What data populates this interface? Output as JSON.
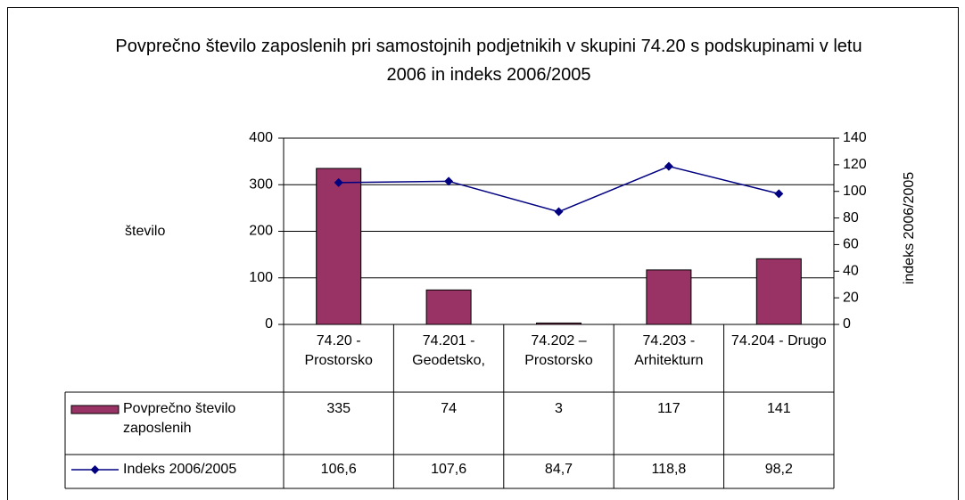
{
  "chart_data": {
    "type": "bar",
    "title": "Povprečno število zaposlenih pri samostojnih podjetnikih v skupini 74.20 s podskupinami v letu 2006 in indeks 2006/2005",
    "y_label": "število",
    "y2_label": "indeks 2006/2005",
    "categories": [
      "74.20 - Prostorsko",
      "74.201 - Geodetsko,",
      "74.202 – Prostorsko",
      "74.203 - Arhitekturn",
      "74.204 - Drugo"
    ],
    "series": [
      {
        "name": "Povprečno število zaposlenih",
        "type": "bar",
        "color": "#993366",
        "values": [
          335,
          74,
          3,
          117,
          141
        ]
      },
      {
        "name": "Indeks 2006/2005",
        "type": "line",
        "axis": "y2",
        "color": "#000080",
        "values": [
          106.6,
          107.6,
          84.7,
          118.8,
          98.2
        ],
        "value_labels": [
          "106,6",
          "107,6",
          "84,7",
          "118,8",
          "98,2"
        ]
      }
    ],
    "ylim": [
      0,
      400
    ],
    "yticks": [
      0,
      100,
      200,
      300,
      400
    ],
    "y2lim": [
      0,
      140
    ],
    "y2ticks": [
      0,
      20,
      40,
      60,
      80,
      100,
      120,
      140
    ],
    "grid": true,
    "data_table": true
  }
}
